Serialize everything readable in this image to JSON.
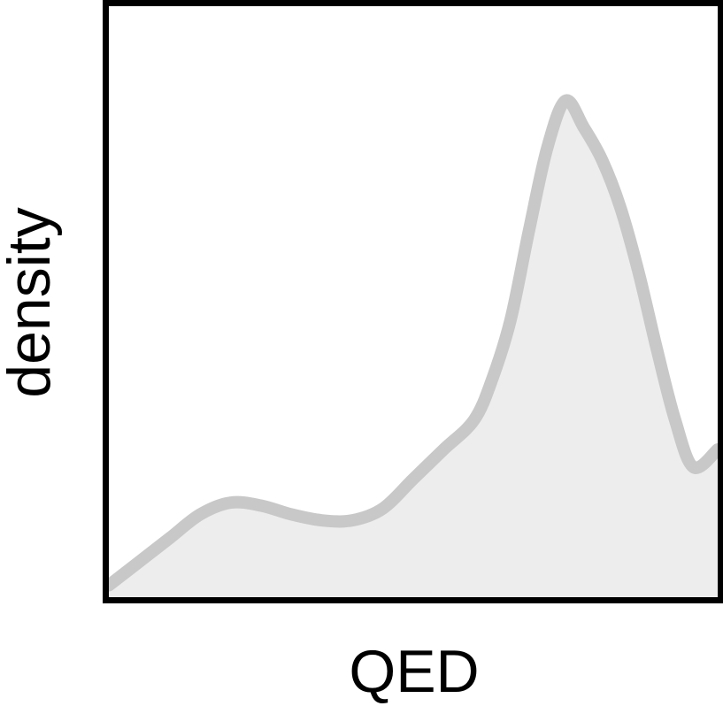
{
  "chart_data": {
    "type": "area",
    "xlabel": "QED",
    "ylabel": "density",
    "ticks": "none",
    "grid": false,
    "legend": "none",
    "xlim": [
      0,
      1
    ],
    "ylim": [
      0,
      1
    ],
    "series": [
      {
        "line_color": "#c8c8c8",
        "fill_color": "#ededed",
        "x": [
          0.0,
          0.05,
          0.1,
          0.15,
          0.2,
          0.25,
          0.3,
          0.35,
          0.4,
          0.45,
          0.5,
          0.55,
          0.6,
          0.63,
          0.66,
          0.69,
          0.72,
          0.75,
          0.78,
          0.81,
          0.84,
          0.87,
          0.9,
          0.93,
          0.96,
          1.0
        ],
        "y": [
          0.02,
          0.06,
          0.1,
          0.14,
          0.16,
          0.155,
          0.14,
          0.13,
          0.13,
          0.15,
          0.2,
          0.25,
          0.3,
          0.37,
          0.47,
          0.62,
          0.76,
          0.84,
          0.795,
          0.74,
          0.66,
          0.55,
          0.42,
          0.3,
          0.22,
          0.25
        ]
      }
    ]
  }
}
